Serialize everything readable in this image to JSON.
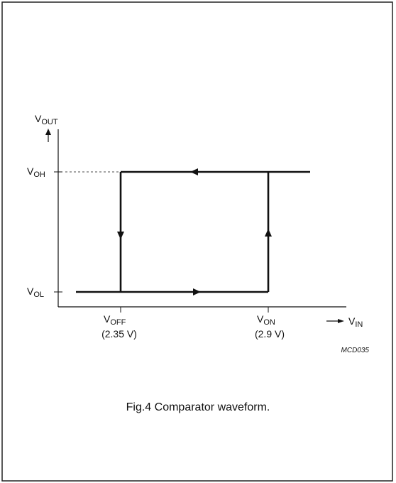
{
  "diagram": {
    "y_axis_label": {
      "main": "V",
      "sub": "OUT"
    },
    "x_axis_label": {
      "main": "V",
      "sub": "IN"
    },
    "levels": [
      {
        "main": "V",
        "sub": "OH"
      },
      {
        "main": "V",
        "sub": "OL"
      }
    ],
    "thresholds": [
      {
        "main": "V",
        "sub": "OFF",
        "note": "(2.35 V)"
      },
      {
        "main": "V",
        "sub": "ON",
        "note": "(2.9 V)"
      }
    ],
    "code": "MCD035",
    "caption": "Fig.4  Comparator waveform."
  }
}
